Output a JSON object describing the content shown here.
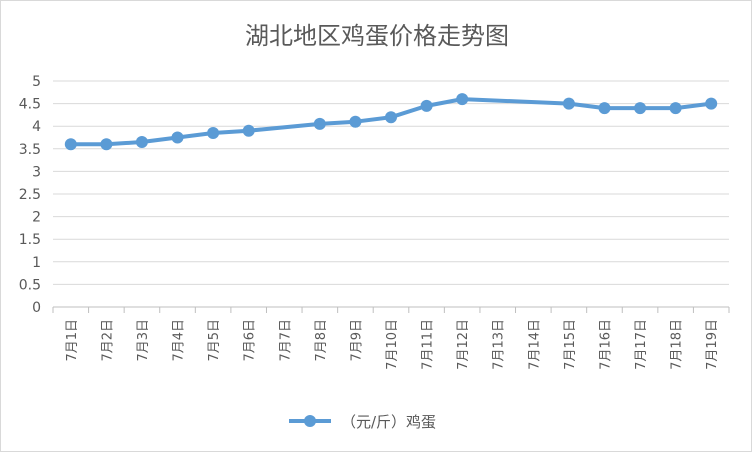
{
  "chart_data": {
    "type": "line",
    "title": "湖北地区鸡蛋价格走势图",
    "categories": [
      "7月1日",
      "7月2日",
      "7月3日",
      "7月4日",
      "7月5日",
      "7月6日",
      "7月7日",
      "7月8日",
      "7月9日",
      "7月10日",
      "7月11日",
      "7月12日",
      "7月13日",
      "7月14日",
      "7月15日",
      "7月16日",
      "7月17日",
      "7月18日",
      "7月19日"
    ],
    "series": [
      {
        "name": "（元/斤）鸡蛋",
        "color": "#5b9bd5",
        "values": [
          3.6,
          3.6,
          3.65,
          3.75,
          3.85,
          3.9,
          null,
          4.05,
          4.1,
          4.2,
          4.45,
          4.6,
          null,
          null,
          4.5,
          4.4,
          4.4,
          4.4,
          4.5
        ]
      }
    ],
    "ylim": [
      0,
      5
    ],
    "yticks": [
      "0",
      "0.5",
      "1",
      "1.5",
      "2",
      "2.5",
      "3",
      "3.5",
      "4",
      "4.5",
      "5"
    ],
    "grid": true,
    "legend": "bottom"
  }
}
